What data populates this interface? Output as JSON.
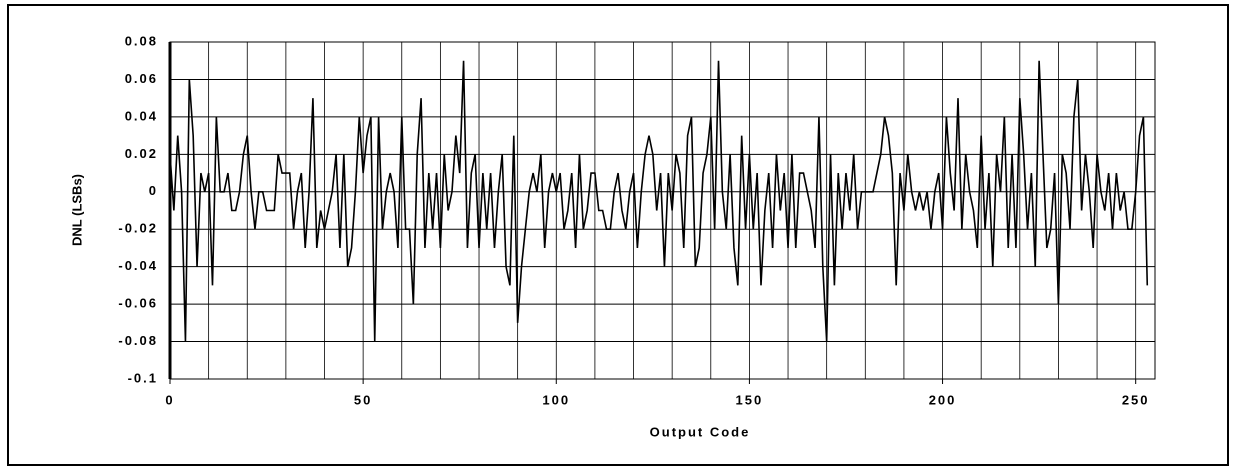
{
  "chart_data": {
    "type": "line",
    "y_label": "DNL (LSBs)",
    "x_label": "Output Code",
    "xlim": [
      0,
      255
    ],
    "xticks": [
      0,
      50,
      100,
      150,
      200,
      250
    ],
    "xgrid": [
      0,
      10,
      20,
      30,
      40,
      50,
      60,
      70,
      80,
      90,
      100,
      110,
      120,
      130,
      140,
      150,
      160,
      170,
      180,
      190,
      200,
      210,
      220,
      230,
      240,
      250
    ],
    "ylim": [
      -0.1,
      0.08
    ],
    "yticks": [
      -0.1,
      -0.08,
      -0.06,
      -0.04,
      -0.02,
      0,
      0.02,
      0.04,
      0.06,
      0.08
    ],
    "grid": true,
    "x": [
      0,
      1,
      2,
      3,
      4,
      5,
      6,
      7,
      8,
      9,
      10,
      11,
      12,
      13,
      14,
      15,
      16,
      17,
      18,
      19,
      20,
      21,
      22,
      23,
      24,
      25,
      26,
      27,
      28,
      29,
      30,
      31,
      32,
      33,
      34,
      35,
      36,
      37,
      38,
      39,
      40,
      41,
      42,
      43,
      44,
      45,
      46,
      47,
      48,
      49,
      50,
      51,
      52,
      53,
      54,
      55,
      56,
      57,
      58,
      59,
      60,
      61,
      62,
      63,
      64,
      65,
      66,
      67,
      68,
      69,
      70,
      71,
      72,
      73,
      74,
      75,
      76,
      77,
      78,
      79,
      80,
      81,
      82,
      83,
      84,
      85,
      86,
      87,
      88,
      89,
      90,
      91,
      92,
      93,
      94,
      95,
      96,
      97,
      98,
      99,
      100,
      101,
      102,
      103,
      104,
      105,
      106,
      107,
      108,
      109,
      110,
      111,
      112,
      113,
      114,
      115,
      116,
      117,
      118,
      119,
      120,
      121,
      122,
      123,
      124,
      125,
      126,
      127,
      128,
      129,
      130,
      131,
      132,
      133,
      134,
      135,
      136,
      137,
      138,
      139,
      140,
      141,
      142,
      143,
      144,
      145,
      146,
      147,
      148,
      149,
      150,
      151,
      152,
      153,
      154,
      155,
      156,
      157,
      158,
      159,
      160,
      161,
      162,
      163,
      164,
      165,
      166,
      167,
      168,
      169,
      170,
      171,
      172,
      173,
      174,
      175,
      176,
      177,
      178,
      179,
      180,
      181,
      182,
      183,
      184,
      185,
      186,
      187,
      188,
      189,
      190,
      191,
      192,
      193,
      194,
      195,
      196,
      197,
      198,
      199,
      200,
      201,
      202,
      203,
      204,
      205,
      206,
      207,
      208,
      209,
      210,
      211,
      212,
      213,
      214,
      215,
      216,
      217,
      218,
      219,
      220,
      221,
      222,
      223,
      224,
      225,
      226,
      227,
      228,
      229,
      230,
      231,
      232,
      233,
      234,
      235,
      236,
      237,
      238,
      239,
      240,
      241,
      242,
      243,
      244,
      245,
      246,
      247,
      248,
      249,
      250,
      251,
      252,
      253
    ],
    "series": [
      {
        "color": "#000000",
        "values": [
          0.02,
          -0.01,
          0.03,
          0,
          -0.08,
          0.06,
          0.03,
          -0.04,
          0.01,
          0,
          0.01,
          -0.05,
          0.04,
          0,
          0,
          0.01,
          -0.01,
          -0.01,
          0,
          0.02,
          0.03,
          0,
          -0.02,
          0,
          0,
          -0.01,
          -0.01,
          -0.01,
          0.02,
          0.01,
          0.01,
          0.01,
          -0.02,
          0,
          0.01,
          -0.03,
          0,
          0.05,
          -0.03,
          -0.01,
          -0.02,
          -0.01,
          0,
          0.02,
          -0.03,
          0.02,
          -0.04,
          -0.03,
          0,
          0.04,
          0.01,
          0.03,
          0.04,
          -0.08,
          0.04,
          -0.02,
          0,
          0.01,
          0,
          -0.03,
          0.04,
          -0.02,
          -0.02,
          -0.06,
          0.02,
          0.05,
          -0.03,
          0.01,
          -0.02,
          0.01,
          -0.03,
          0.02,
          -0.01,
          0,
          0.03,
          0.01,
          0.07,
          -0.03,
          0.01,
          0.02,
          -0.03,
          0.01,
          -0.02,
          0.01,
          -0.03,
          0,
          0.02,
          -0.04,
          -0.05,
          0.03,
          -0.07,
          -0.04,
          -0.02,
          0,
          0.01,
          0,
          0.02,
          -0.03,
          0,
          0.01,
          0,
          0.01,
          -0.02,
          -0.01,
          0.01,
          -0.03,
          0.02,
          -0.02,
          -0.01,
          0.01,
          0.01,
          -0.01,
          -0.01,
          -0.02,
          -0.02,
          0,
          0.01,
          -0.01,
          -0.02,
          0,
          0.01,
          -0.03,
          0,
          0.02,
          0.03,
          0.02,
          -0.01,
          0.01,
          -0.04,
          0.01,
          -0.01,
          0.02,
          0.01,
          -0.03,
          0.03,
          0.04,
          -0.04,
          -0.03,
          0.01,
          0.02,
          0.04,
          -0.02,
          0.07,
          0,
          -0.02,
          0.02,
          -0.03,
          -0.05,
          0.03,
          -0.02,
          0.02,
          -0.02,
          0.01,
          -0.05,
          -0.01,
          0.01,
          -0.03,
          0.02,
          -0.01,
          0.01,
          -0.03,
          0.02,
          -0.03,
          0.01,
          0.01,
          0,
          -0.01,
          -0.03,
          0.04,
          -0.04,
          -0.08,
          0.02,
          -0.05,
          0.01,
          -0.02,
          0.01,
          -0.01,
          0.02,
          -0.02,
          0,
          0,
          0,
          0,
          0.01,
          0.02,
          0.04,
          0.03,
          0.01,
          -0.05,
          0.01,
          -0.01,
          0.02,
          0,
          -0.01,
          0,
          -0.01,
          0,
          -0.02,
          0,
          0.01,
          -0.02,
          0.04,
          0.01,
          -0.01,
          0.05,
          -0.02,
          0.02,
          0,
          -0.01,
          -0.03,
          0.03,
          -0.02,
          0.01,
          -0.04,
          0.02,
          0,
          0.04,
          -0.03,
          0.02,
          -0.03,
          0.05,
          0.02,
          -0.02,
          0.01,
          -0.04,
          0.07,
          0.02,
          -0.03,
          -0.02,
          0.01,
          -0.06,
          0.02,
          0.01,
          -0.02,
          0.04,
          0.06,
          -0.01,
          0.02,
          0,
          -0.03,
          0.02,
          0,
          -0.01,
          0.01,
          -0.02,
          0.01,
          -0.01,
          0,
          -0.02,
          -0.02,
          0,
          0.03,
          0.04,
          -0.05
        ]
      }
    ]
  }
}
